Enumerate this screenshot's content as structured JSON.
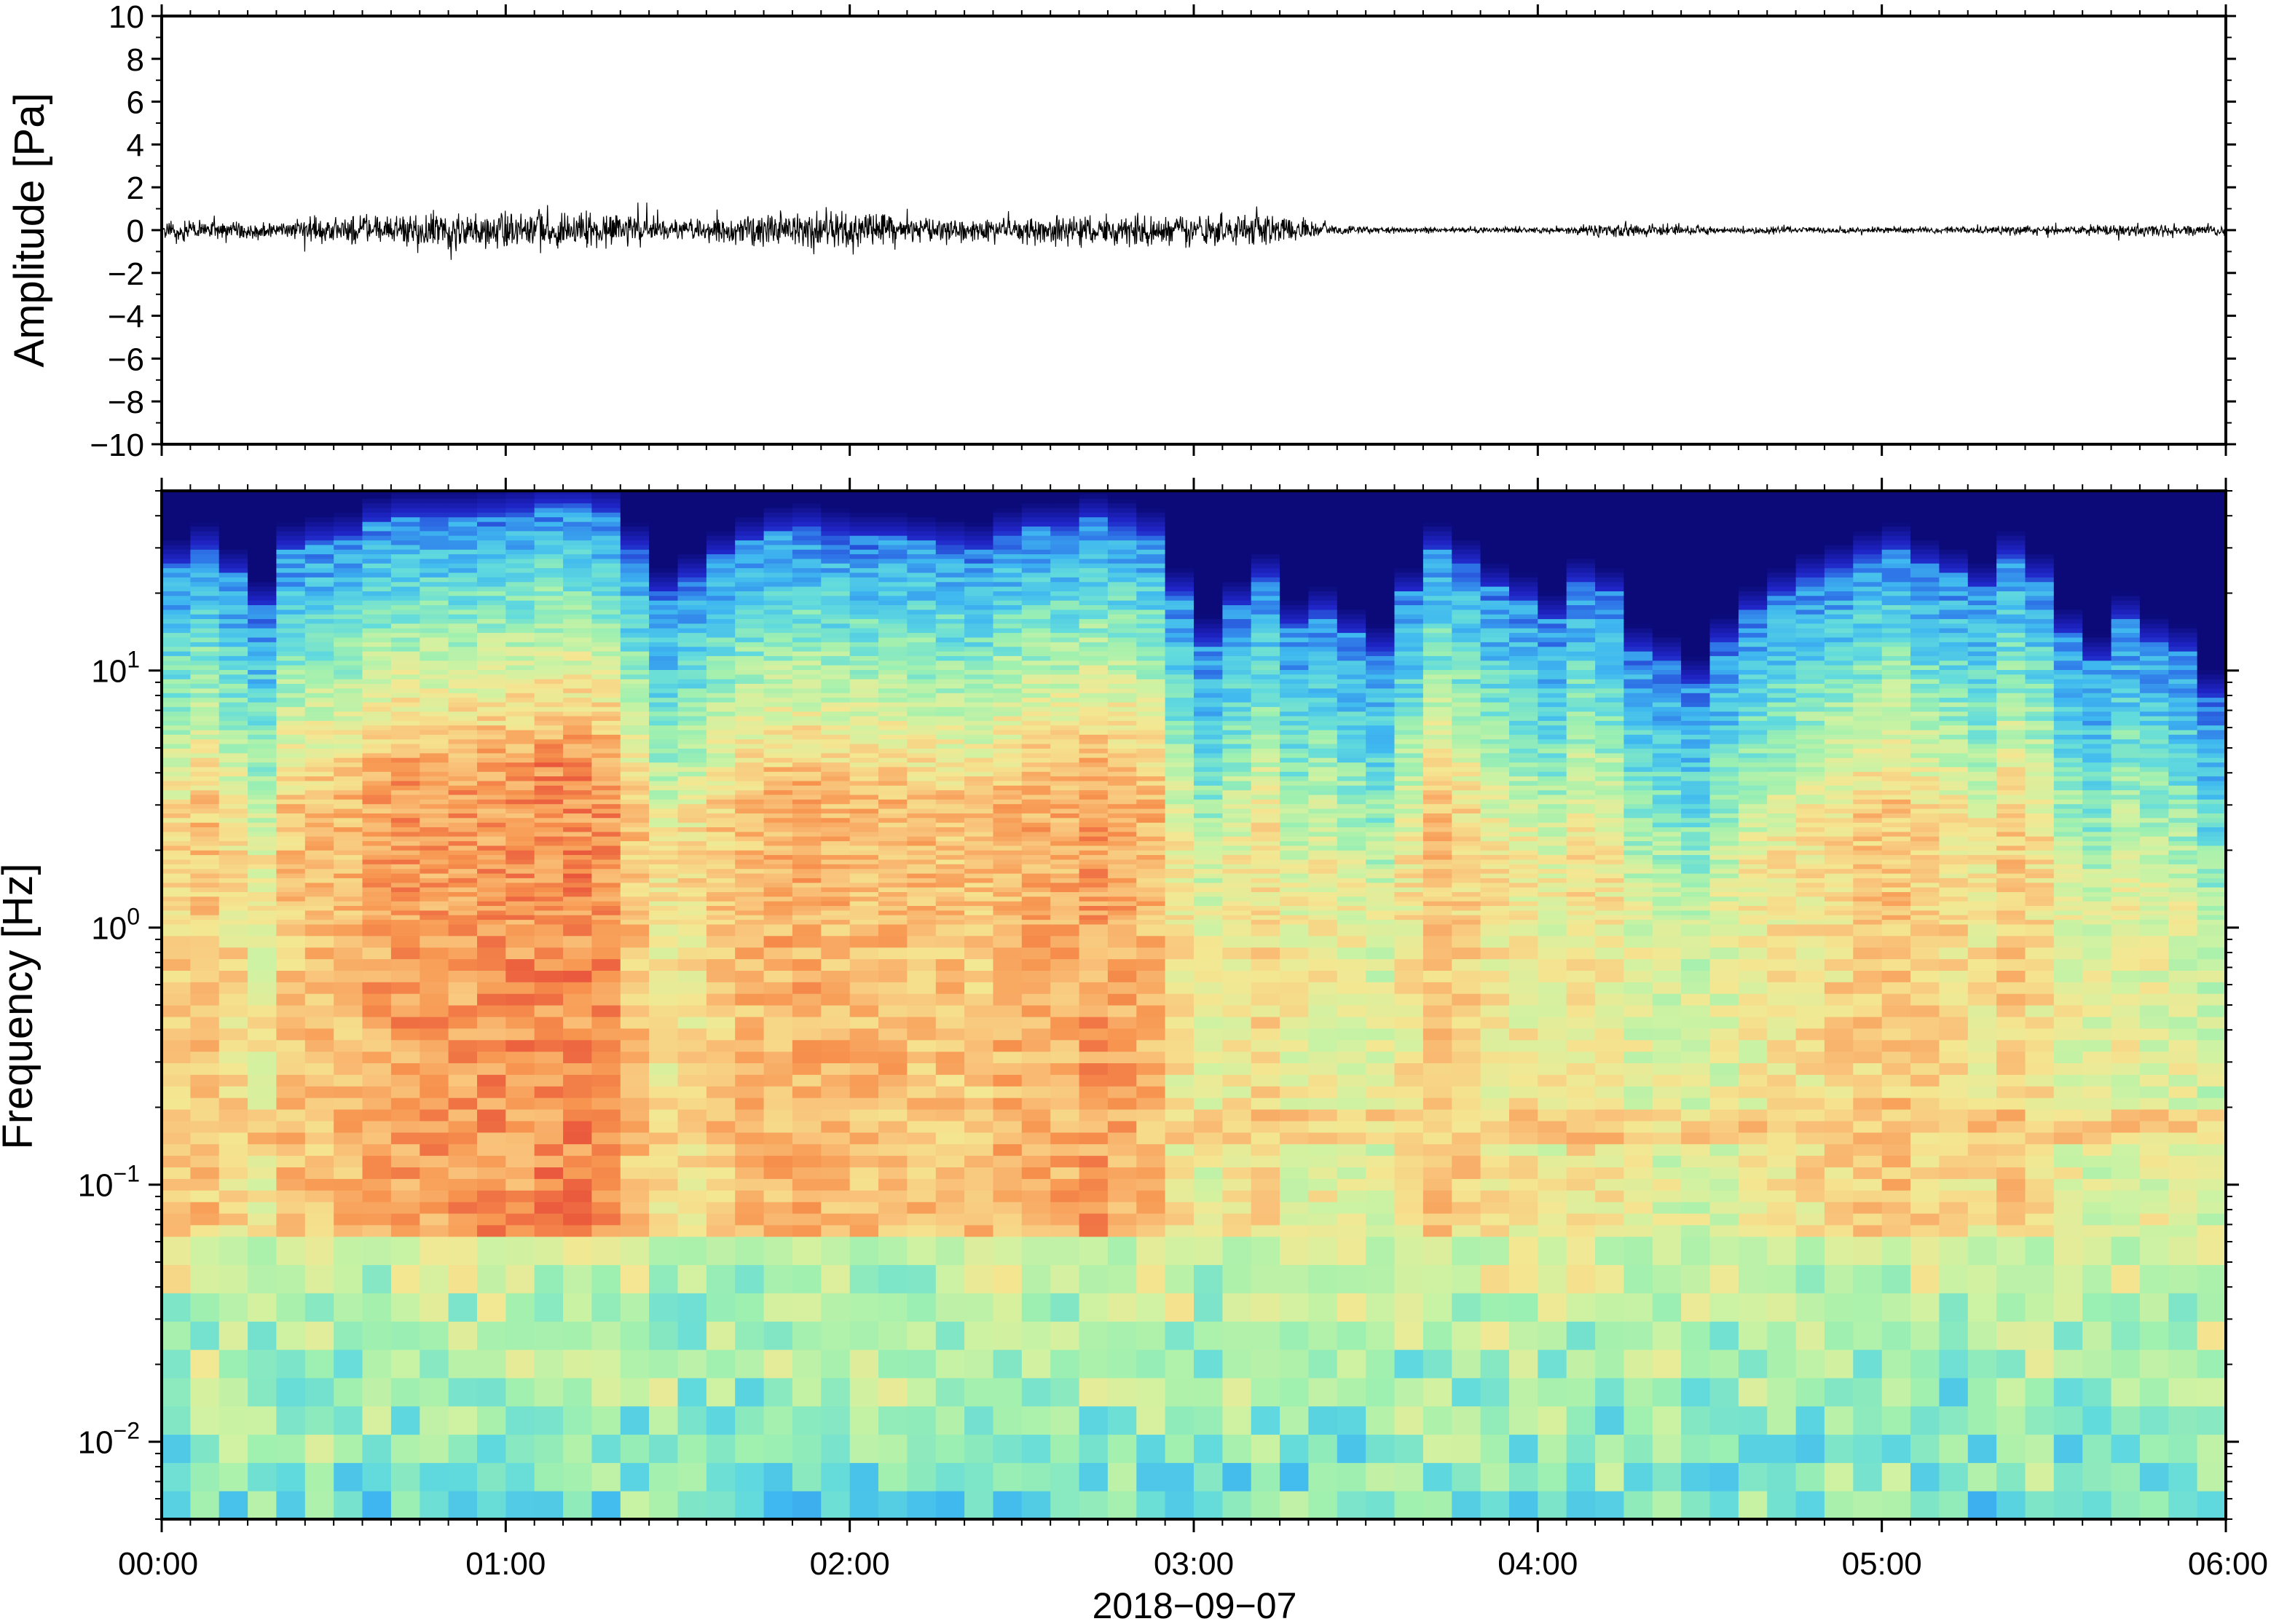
{
  "chart_data": [
    {
      "type": "line",
      "ylabel": "Amplitude [Pa]",
      "ylim": [
        -10,
        10
      ],
      "yticks": [
        -10,
        -8,
        -6,
        -4,
        -2,
        0,
        2,
        4,
        6,
        8,
        10
      ],
      "ytick_labels": [
        "−10",
        "−8",
        "−6",
        "−4",
        "−2",
        "0",
        "2",
        "4",
        "6",
        "8",
        "10"
      ],
      "xlim_minutes": [
        0,
        360
      ],
      "grid": false,
      "series": [
        {
          "color": "#000000",
          "x_minutes": [
            0,
            5,
            10,
            15,
            20,
            25,
            30,
            35,
            40,
            45,
            50,
            55,
            60,
            65,
            70,
            75,
            80,
            85,
            90,
            95,
            100,
            105,
            110,
            115,
            120,
            125,
            130,
            135,
            140,
            145,
            150,
            155,
            160,
            165,
            170,
            175,
            180,
            185,
            190,
            195,
            200,
            205,
            210,
            215,
            220,
            225,
            230,
            235,
            240,
            245,
            250,
            255,
            260,
            265,
            270,
            275,
            280,
            285,
            290,
            295,
            300,
            305,
            310,
            315,
            320,
            325,
            330,
            335,
            340,
            345,
            350,
            355,
            360
          ],
          "envelope_pa": [
            0.6,
            0.7,
            0.6,
            0.6,
            0.5,
            0.8,
            0.9,
            0.9,
            1.0,
            1.2,
            1.3,
            1.2,
            1.2,
            1.3,
            1.2,
            1.2,
            1.1,
            0.9,
            0.6,
            0.7,
            0.9,
            1.0,
            1.1,
            1.2,
            1.1,
            1.0,
            0.9,
            1.0,
            0.9,
            0.9,
            0.9,
            1.0,
            1.0,
            1.0,
            1.0,
            1.1,
            1.1,
            1.0,
            1.0,
            1.0,
            0.6,
            0.3,
            0.2,
            0.2,
            0.2,
            0.2,
            0.2,
            0.2,
            0.2,
            0.2,
            0.5,
            0.5,
            0.4,
            0.3,
            0.3,
            0.2,
            0.3,
            0.2,
            0.2,
            0.2,
            0.2,
            0.2,
            0.2,
            0.2,
            0.3,
            0.3,
            0.3,
            0.3,
            0.4,
            0.4,
            0.4,
            0.4,
            0.4
          ]
        }
      ]
    },
    {
      "type": "heatmap",
      "ylabel": "Frequency [Hz]",
      "xlabel": "2018−09−07",
      "y_scale": "log",
      "ylim_hz": [
        0.005,
        50
      ],
      "yticks_hz": [
        0.01,
        0.1,
        1,
        10
      ],
      "ytick_labels": [
        {
          "base": "10",
          "exp": "−2"
        },
        {
          "base": "10",
          "exp": "−1"
        },
        {
          "base": "10",
          "exp": "0"
        },
        {
          "base": "10",
          "exp": "1"
        }
      ],
      "xlim_minutes": [
        0,
        360
      ],
      "xticks_minutes": [
        0,
        60,
        120,
        180,
        240,
        300,
        360
      ],
      "xtick_labels": [
        "00:00",
        "01:00",
        "02:00",
        "03:00",
        "04:00",
        "05:00",
        "06:00"
      ],
      "colormap": [
        "#0b0a78",
        "#1f25c7",
        "#2f77e8",
        "#3fb8f0",
        "#62dbdd",
        "#9ef0b0",
        "#cff2a2",
        "#f4e792",
        "#f9c27a",
        "#f7934e",
        "#e8503a"
      ],
      "time_minutes": [
        0,
        5,
        10,
        15,
        20,
        25,
        30,
        35,
        40,
        45,
        50,
        55,
        60,
        65,
        70,
        75,
        80,
        85,
        90,
        95,
        100,
        105,
        110,
        115,
        120,
        125,
        130,
        135,
        140,
        145,
        150,
        155,
        160,
        165,
        170,
        175,
        180,
        185,
        190,
        195,
        200,
        205,
        210,
        215,
        220,
        225,
        230,
        235,
        240,
        245,
        250,
        255,
        260,
        265,
        270,
        275,
        280,
        285,
        290,
        295,
        300,
        305,
        310,
        315,
        320,
        325,
        330,
        335,
        340,
        345,
        350,
        355
      ],
      "upper_cutoff_hz": [
        26,
        30,
        24,
        18,
        30,
        32,
        33,
        38,
        40,
        40,
        40,
        41,
        42,
        44,
        44,
        42,
        30,
        20,
        23,
        28,
        32,
        35,
        36,
        34,
        33,
        33,
        32,
        31,
        30,
        34,
        36,
        36,
        39,
        37,
        34,
        20,
        13,
        18,
        23,
        15,
        17,
        14,
        12,
        20,
        30,
        26,
        21,
        19,
        16,
        22,
        20,
        12,
        11,
        9,
        13,
        17,
        20,
        23,
        25,
        28,
        30,
        26,
        24,
        21,
        28,
        23,
        14,
        11,
        16,
        13,
        12,
        8
      ],
      "hot_band_hz": [
        0.14,
        0.2
      ]
    }
  ]
}
